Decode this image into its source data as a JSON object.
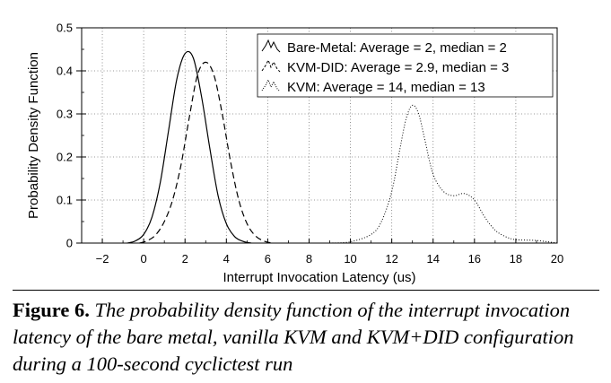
{
  "chart_data": {
    "type": "line",
    "xlabel": "Interrupt Invocation Latency (us)",
    "ylabel": "Probability Density Function",
    "xlim": [
      -3,
      20
    ],
    "ylim": [
      0,
      0.5
    ],
    "xticks": [
      -2,
      0,
      2,
      4,
      6,
      8,
      10,
      12,
      14,
      16,
      18,
      20
    ],
    "yticks": [
      0,
      0.1,
      0.2,
      0.3,
      0.4,
      0.5
    ],
    "xtick_labels": [
      "−2",
      "0",
      "2",
      "4",
      "6",
      "8",
      "10",
      "12",
      "14",
      "16",
      "18",
      "20"
    ],
    "ytick_labels": [
      "0",
      "0.1",
      "0.2",
      "0.3",
      "0.4",
      "0.5"
    ],
    "grid": true,
    "legend_position": "top-right",
    "series": [
      {
        "name": "Bare-Metal: Average = 2, median = 2",
        "style": "solid",
        "x": [
          -0.8,
          -0.4,
          0,
          0.4,
          0.8,
          1.2,
          1.6,
          2.0,
          2.4,
          2.8,
          3.2,
          3.6,
          4.0,
          4.4,
          4.8,
          5.2
        ],
        "y": [
          0.0,
          0.005,
          0.02,
          0.06,
          0.14,
          0.26,
          0.38,
          0.44,
          0.43,
          0.34,
          0.22,
          0.11,
          0.045,
          0.015,
          0.004,
          0.0
        ]
      },
      {
        "name": "KVM-DID: Average = 2.9, median = 3",
        "style": "dashed",
        "x": [
          -0.2,
          0.2,
          0.6,
          1.0,
          1.4,
          1.8,
          2.2,
          2.6,
          3.0,
          3.4,
          3.8,
          4.2,
          4.6,
          5.0,
          5.4,
          5.8,
          6.2
        ],
        "y": [
          0.0,
          0.006,
          0.02,
          0.05,
          0.1,
          0.18,
          0.29,
          0.39,
          0.42,
          0.39,
          0.3,
          0.19,
          0.1,
          0.045,
          0.017,
          0.005,
          0.0
        ]
      },
      {
        "name": "KVM: Average = 14, median = 13",
        "style": "dotted",
        "x": [
          9.0,
          10.0,
          11.0,
          11.5,
          12.0,
          12.4,
          12.7,
          13.0,
          13.3,
          13.6,
          14.0,
          14.5,
          15.0,
          15.5,
          16.0,
          16.5,
          17.0,
          17.5,
          18.0,
          19.0,
          20.0
        ],
        "y": [
          0.0,
          0.003,
          0.02,
          0.05,
          0.12,
          0.22,
          0.29,
          0.32,
          0.3,
          0.24,
          0.16,
          0.12,
          0.11,
          0.115,
          0.1,
          0.06,
          0.03,
          0.015,
          0.008,
          0.006,
          0.0
        ]
      }
    ]
  },
  "caption": {
    "label": "Figure 6.",
    "text": "The probability density function of the interrupt invocation latency of the bare metal, vanilla KVM and KVM+DID configuration during a 100-second cyclictest run"
  }
}
